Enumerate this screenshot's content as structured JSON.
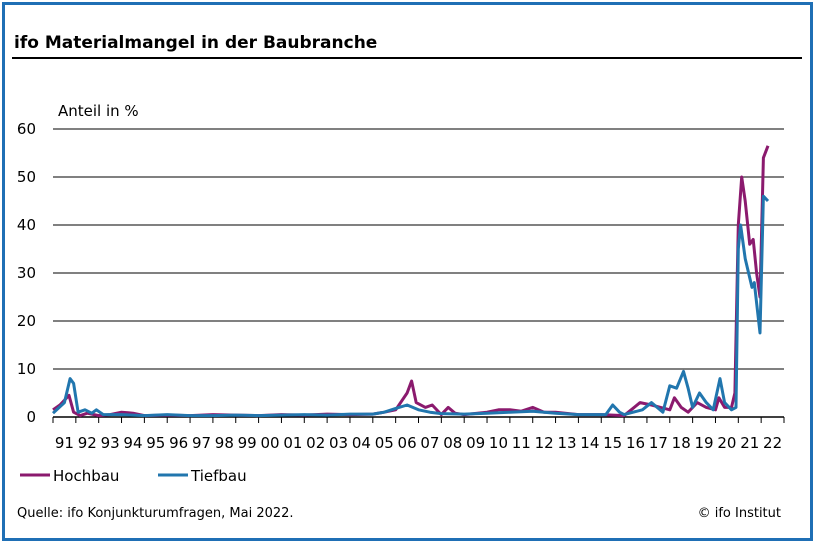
{
  "header": {
    "title": "ifo Materialmangel in der Baubranche"
  },
  "footer": {
    "source": "Quelle: ifo Konjunkturumfragen, Mai 2022.",
    "copyright": "© ifo Institut"
  },
  "colors": {
    "frame": "#1f6fb5",
    "Hochbau": "#8b1a6e",
    "Tiefbau": "#2176ae"
  },
  "chart_data": {
    "type": "line",
    "ylabel": "Anteil in %",
    "ylim": [
      0,
      60
    ],
    "yticks": [
      0,
      10,
      20,
      30,
      40,
      50,
      60
    ],
    "xlim": [
      1991,
      2023
    ],
    "xtick_labels": [
      "91",
      "92",
      "93",
      "94",
      "95",
      "96",
      "97",
      "98",
      "99",
      "00",
      "01",
      "02",
      "03",
      "04",
      "05",
      "06",
      "07",
      "08",
      "09",
      "10",
      "11",
      "12",
      "13",
      "14",
      "15",
      "16",
      "17",
      "18",
      "19",
      "20",
      "21",
      "22"
    ],
    "grid": "horizontal",
    "legend": "bottom-left",
    "series": [
      {
        "name": "Hochbau",
        "points": [
          [
            1991.0,
            1.5
          ],
          [
            1991.3,
            2.5
          ],
          [
            1991.7,
            4.5
          ],
          [
            1991.9,
            1
          ],
          [
            1992.2,
            0.3
          ],
          [
            1992.5,
            0.8
          ],
          [
            1993.0,
            0.3
          ],
          [
            1993.5,
            0.5
          ],
          [
            1994.0,
            1
          ],
          [
            1994.5,
            0.8
          ],
          [
            1995.0,
            0.3
          ],
          [
            1996.0,
            0.4
          ],
          [
            1997.0,
            0.3
          ],
          [
            1998.0,
            0.5
          ],
          [
            1999.0,
            0.4
          ],
          [
            2000.0,
            0.3
          ],
          [
            2001.0,
            0.5
          ],
          [
            2002.0,
            0.4
          ],
          [
            2003.0,
            0.6
          ],
          [
            2004.0,
            0.5
          ],
          [
            2005.0,
            0.6
          ],
          [
            2005.5,
            1
          ],
          [
            2006.0,
            1.5
          ],
          [
            2006.5,
            5
          ],
          [
            2006.7,
            7.5
          ],
          [
            2006.9,
            3
          ],
          [
            2007.3,
            2
          ],
          [
            2007.6,
            2.5
          ],
          [
            2008.0,
            0.5
          ],
          [
            2008.3,
            2
          ],
          [
            2008.6,
            0.8
          ],
          [
            2009.0,
            0.5
          ],
          [
            2010.0,
            1
          ],
          [
            2010.5,
            1.5
          ],
          [
            2011.0,
            1.5
          ],
          [
            2011.5,
            1.2
          ],
          [
            2012.0,
            2
          ],
          [
            2012.5,
            1
          ],
          [
            2013.0,
            1
          ],
          [
            2014.0,
            0.5
          ],
          [
            2015.0,
            0.5
          ],
          [
            2016.0,
            0.3
          ],
          [
            2016.7,
            3
          ],
          [
            2017.2,
            2.5
          ],
          [
            2017.6,
            2
          ],
          [
            2018.0,
            1.5
          ],
          [
            2018.2,
            4
          ],
          [
            2018.5,
            2
          ],
          [
            2018.8,
            1
          ],
          [
            2019.2,
            3
          ],
          [
            2019.6,
            2
          ],
          [
            2020.0,
            1.5
          ],
          [
            2020.15,
            4
          ],
          [
            2020.4,
            2
          ],
          [
            2020.7,
            2
          ],
          [
            2020.85,
            5
          ],
          [
            2021.0,
            40
          ],
          [
            2021.15,
            50
          ],
          [
            2021.3,
            45
          ],
          [
            2021.5,
            36
          ],
          [
            2021.65,
            37
          ],
          [
            2021.8,
            30
          ],
          [
            2021.95,
            25
          ],
          [
            2022.1,
            54
          ],
          [
            2022.3,
            56.5
          ]
        ]
      },
      {
        "name": "Tiefbau",
        "points": [
          [
            1991.0,
            0.8
          ],
          [
            1991.5,
            3
          ],
          [
            1991.75,
            8
          ],
          [
            1991.9,
            7
          ],
          [
            1992.1,
            1
          ],
          [
            1992.4,
            1.5
          ],
          [
            1992.7,
            0.8
          ],
          [
            1992.9,
            1.5
          ],
          [
            1993.2,
            0.5
          ],
          [
            1994.0,
            0.5
          ],
          [
            1995.0,
            0.3
          ],
          [
            1996.0,
            0.5
          ],
          [
            1997.0,
            0.3
          ],
          [
            1998.0,
            0.3
          ],
          [
            1999.0,
            0.4
          ],
          [
            2000.0,
            0.3
          ],
          [
            2001.0,
            0.4
          ],
          [
            2002.0,
            0.5
          ],
          [
            2003.0,
            0.4
          ],
          [
            2004.0,
            0.6
          ],
          [
            2005.0,
            0.6
          ],
          [
            2005.5,
            1
          ],
          [
            2006.0,
            1.8
          ],
          [
            2006.5,
            2.5
          ],
          [
            2007.0,
            1.5
          ],
          [
            2007.5,
            1
          ],
          [
            2008.0,
            0.7
          ],
          [
            2009.0,
            0.6
          ],
          [
            2010.0,
            0.8
          ],
          [
            2011.0,
            1
          ],
          [
            2012.0,
            1.2
          ],
          [
            2013.0,
            0.8
          ],
          [
            2014.0,
            0.5
          ],
          [
            2015.2,
            0.5
          ],
          [
            2015.5,
            2.5
          ],
          [
            2015.8,
            1
          ],
          [
            2016.0,
            0.5
          ],
          [
            2016.8,
            1.5
          ],
          [
            2017.2,
            3
          ],
          [
            2017.7,
            1
          ],
          [
            2018.0,
            6.5
          ],
          [
            2018.3,
            6
          ],
          [
            2018.6,
            9.5
          ],
          [
            2018.8,
            6
          ],
          [
            2019.0,
            2
          ],
          [
            2019.3,
            5
          ],
          [
            2019.6,
            3
          ],
          [
            2019.9,
            1.5
          ],
          [
            2020.2,
            8
          ],
          [
            2020.4,
            3
          ],
          [
            2020.7,
            1.5
          ],
          [
            2020.9,
            2
          ],
          [
            2021.0,
            35
          ],
          [
            2021.1,
            40
          ],
          [
            2021.3,
            33
          ],
          [
            2021.6,
            27
          ],
          [
            2021.7,
            28
          ],
          [
            2021.95,
            17.5
          ],
          [
            2022.1,
            46
          ],
          [
            2022.3,
            45
          ]
        ]
      }
    ]
  }
}
